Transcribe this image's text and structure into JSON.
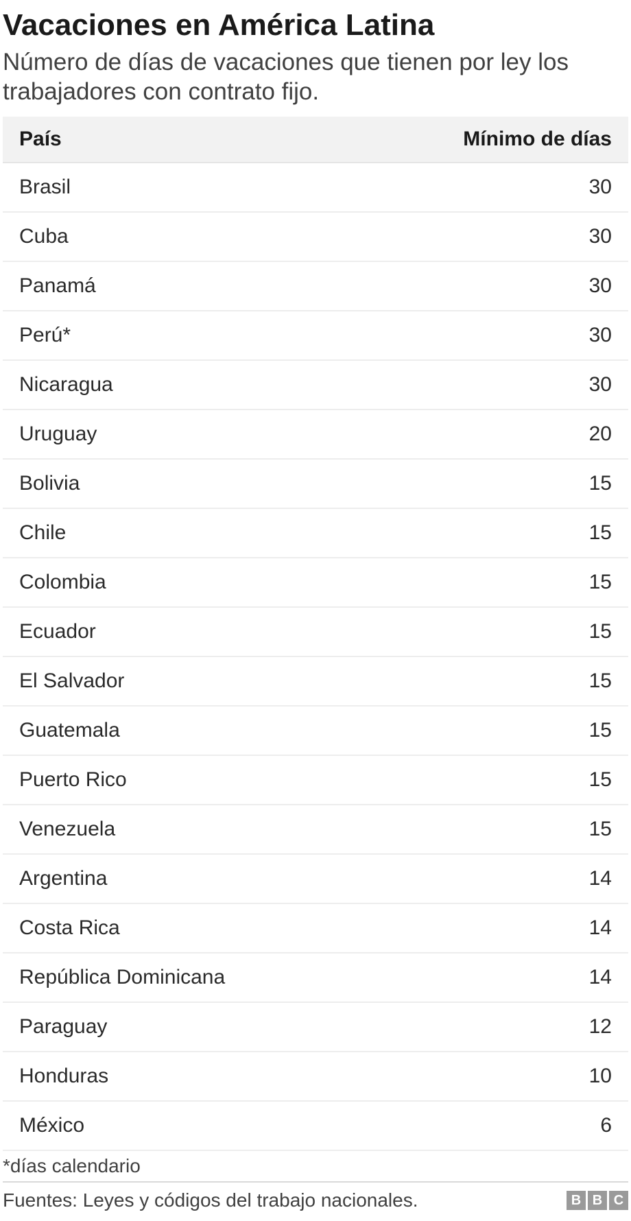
{
  "header": {
    "title": "Vacaciones en América Latina",
    "subtitle": "Número de días de vacaciones que tienen por ley los trabajadores con contrato fijo."
  },
  "table": {
    "type": "table",
    "columns": [
      {
        "key": "country",
        "label": "País",
        "align": "left"
      },
      {
        "key": "days",
        "label": "Mínimo de días",
        "align": "right"
      }
    ],
    "rows": [
      {
        "country": "Brasil",
        "days": 30
      },
      {
        "country": "Cuba",
        "days": 30
      },
      {
        "country": "Panamá",
        "days": 30
      },
      {
        "country": "Perú*",
        "days": 30
      },
      {
        "country": "Nicaragua",
        "days": 30
      },
      {
        "country": "Uruguay",
        "days": 20
      },
      {
        "country": "Bolivia",
        "days": 15
      },
      {
        "country": "Chile",
        "days": 15
      },
      {
        "country": "Colombia",
        "days": 15
      },
      {
        "country": "Ecuador",
        "days": 15
      },
      {
        "country": "El Salvador",
        "days": 15
      },
      {
        "country": "Guatemala",
        "days": 15
      },
      {
        "country": "Puerto Rico",
        "days": 15
      },
      {
        "country": "Venezuela",
        "days": 15
      },
      {
        "country": "Argentina",
        "days": 14
      },
      {
        "country": "Costa Rica",
        "days": 14
      },
      {
        "country": "República Dominicana",
        "days": 14
      },
      {
        "country": "Paraguay",
        "days": 12
      },
      {
        "country": "Honduras",
        "days": 10
      },
      {
        "country": "México",
        "days": 6
      }
    ],
    "header_bg": "#f2f2f2",
    "row_border_color": "#ededed",
    "font_size_header": 30,
    "font_size_cell": 30,
    "text_color": "#2a2a2a"
  },
  "footnote": "*días calendario",
  "footer": {
    "source": "Fuentes: Leyes y códigos del trabajo nacionales.",
    "logo_letters": [
      "B",
      "B",
      "C"
    ],
    "logo_bg": "#9a9a9a",
    "logo_fg": "#ffffff"
  },
  "colors": {
    "background": "#ffffff",
    "title": "#1a1a1a",
    "subtitle": "#404040"
  }
}
